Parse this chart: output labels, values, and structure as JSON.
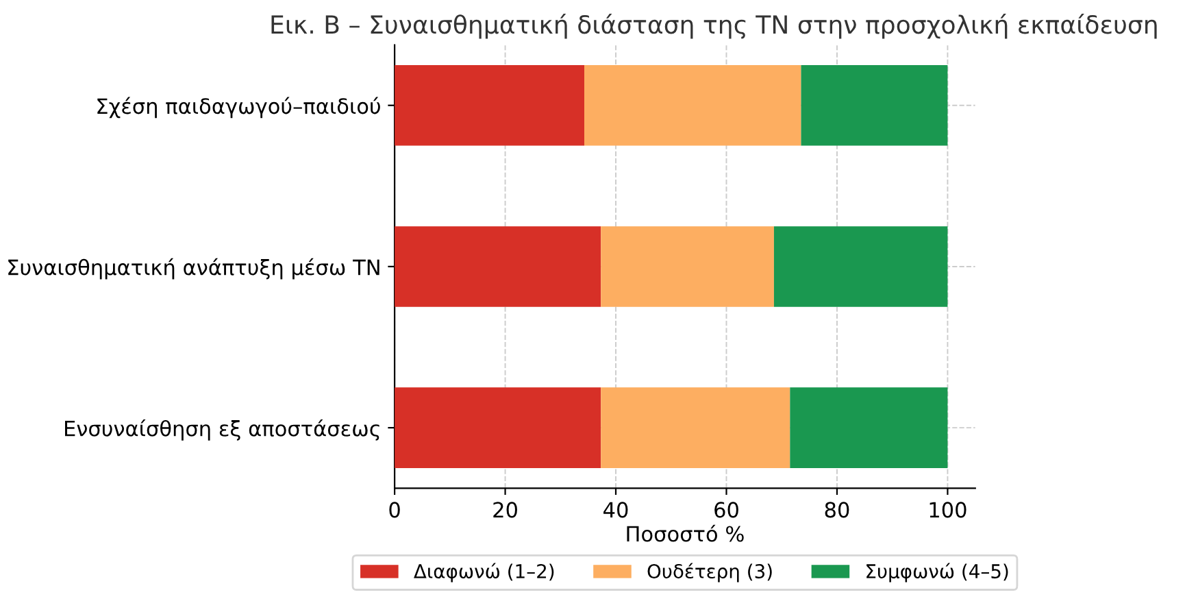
{
  "chart_data": {
    "type": "bar",
    "orientation": "horizontal",
    "stacked": true,
    "title": "Εικ. Β – Συναισθηματική διάσταση της ΤΝ στην προσχολική εκπαίδευση",
    "xlabel": "Ποσοστό %",
    "categories": [
      "Σχέση παιδαγωγού–παιδιού",
      "Συναισθηματική ανάπτυξη μέσω ΤΝ",
      "Ενσυναίσθηση εξ αποστάσεως"
    ],
    "series": [
      {
        "name": "Διαφωνώ (1–2)",
        "color": "#d73027",
        "values": [
          34.3,
          37.3,
          37.3
        ]
      },
      {
        "name": "Ουδέτερη (3)",
        "color": "#fdae61",
        "values": [
          39.2,
          31.3,
          34.2
        ]
      },
      {
        "name": "Συμφωνώ (4–5)",
        "color": "#1a9850",
        "values": [
          26.5,
          31.4,
          28.5
        ]
      }
    ],
    "xlim": [
      0,
      105
    ],
    "xticks": [
      0,
      20,
      40,
      60,
      80,
      100
    ],
    "grid": true,
    "legend": "bottom"
  }
}
